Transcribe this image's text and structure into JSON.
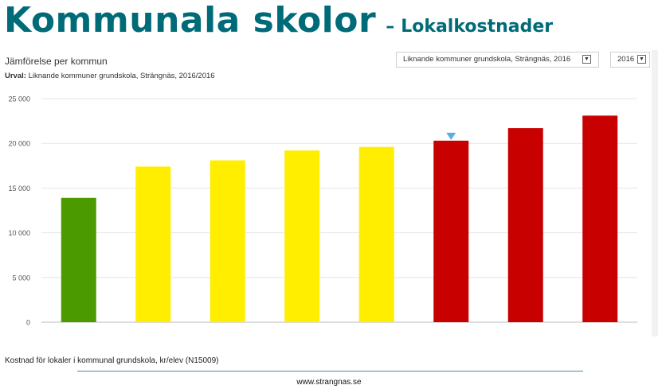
{
  "slide": {
    "title": "Kommunala skolor",
    "separator": "–",
    "subtitle": "Lokalkostnader",
    "footer_url": "www.strangnas.se"
  },
  "panel": {
    "heading": "Jämförelse per kommun",
    "urval_label": "Urval:",
    "urval_value": "Liknande kommuner grundskola, Strängnäs, 2016/2016",
    "dropdown_group": "Liknande kommuner grundskola, Strängnäs, 2016",
    "dropdown_year": "2016",
    "footnote": "Kostnad för lokaler i kommunal grundskola, kr/elev (N15009)"
  },
  "chart_data": {
    "type": "bar",
    "title": "",
    "xlabel": "",
    "ylabel": "",
    "ylim": [
      0,
      25000
    ],
    "yticks": [
      0,
      5000,
      10000,
      15000,
      20000,
      25000
    ],
    "ytick_labels": [
      "0",
      "5 000",
      "10 000",
      "15 000",
      "20 000",
      "25 000"
    ],
    "grid": true,
    "legend": "none",
    "values": [
      13900,
      17400,
      18100,
      19200,
      19600,
      20300,
      21700,
      23100
    ],
    "colors": [
      "#4a9a00",
      "#ffee00",
      "#ffee00",
      "#ffee00",
      "#ffee00",
      "#c80000",
      "#c80000",
      "#c80000"
    ],
    "marker_index": 5,
    "marker_color": "#5aaee0"
  }
}
